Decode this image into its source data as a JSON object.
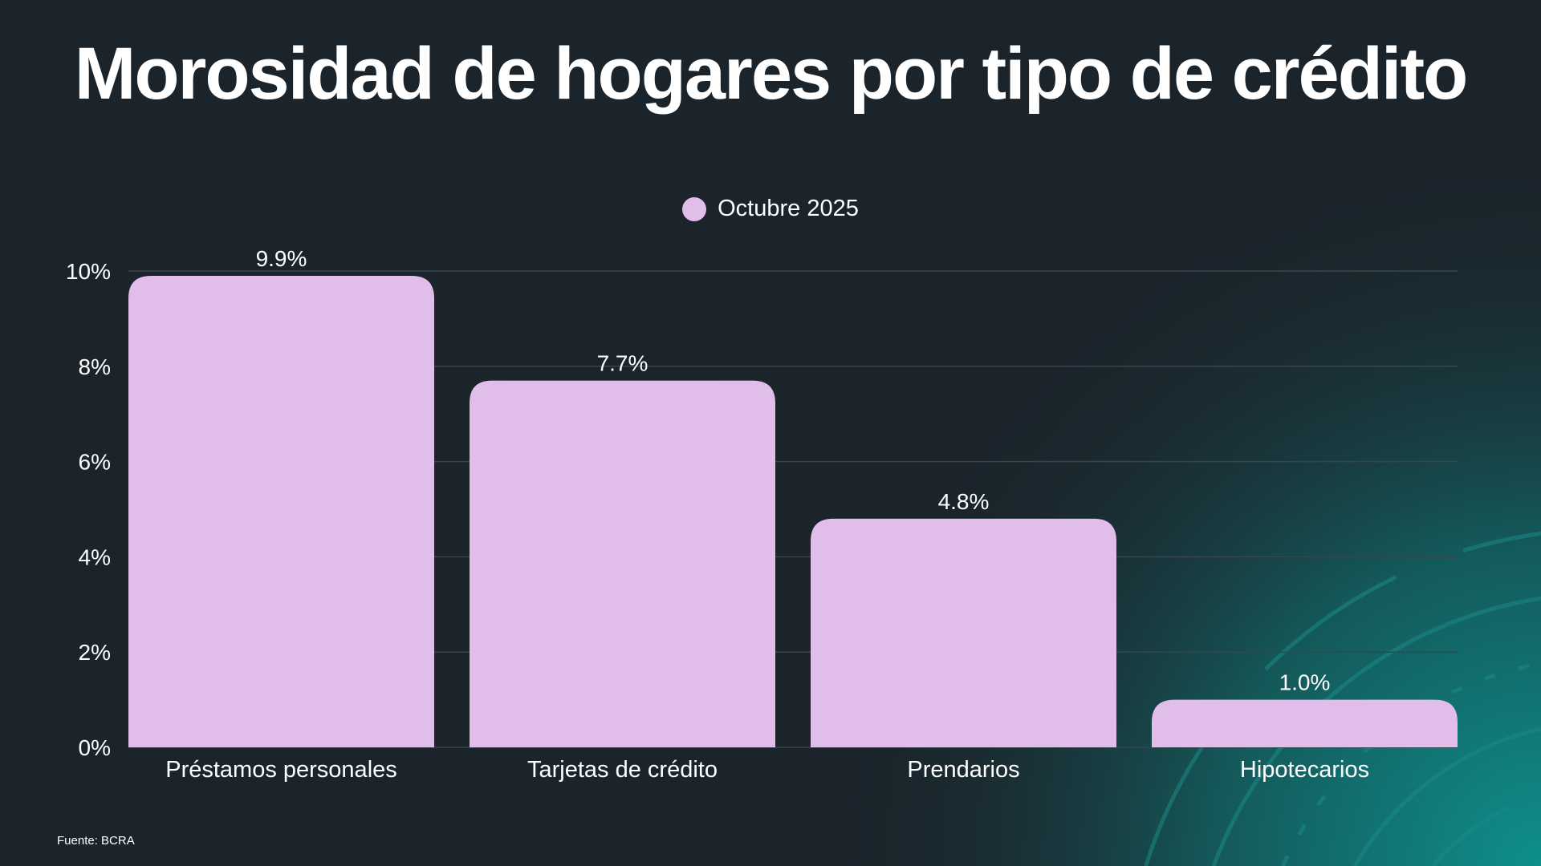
{
  "title": "Morosidad de hogares por tipo de crédito",
  "source": "Fuente: BCRA",
  "colors": {
    "background": "#1b242b",
    "bar": "#e1bde9",
    "grid": "#3a444c",
    "accent_glow": "#0e8f8c"
  },
  "chart_data": {
    "type": "bar",
    "title": "Morosidad de hogares por tipo de crédito",
    "categories": [
      "Préstamos personales",
      "Tarjetas de crédito",
      "Prendarios",
      "Hipotecarios"
    ],
    "series": [
      {
        "name": "Octubre 2025",
        "values": [
          9.9,
          7.7,
          4.8,
          1.0
        ]
      }
    ],
    "data_labels": [
      "9.9%",
      "7.7%",
      "4.8%",
      "1.0%"
    ],
    "yticks": [
      "0%",
      "2%",
      "4%",
      "6%",
      "8%",
      "10%"
    ],
    "ytick_values": [
      0,
      2,
      4,
      6,
      8,
      10
    ],
    "ylim": [
      0,
      10
    ],
    "xlabel": "",
    "ylabel": "",
    "grid": true,
    "legend": "top-center"
  }
}
